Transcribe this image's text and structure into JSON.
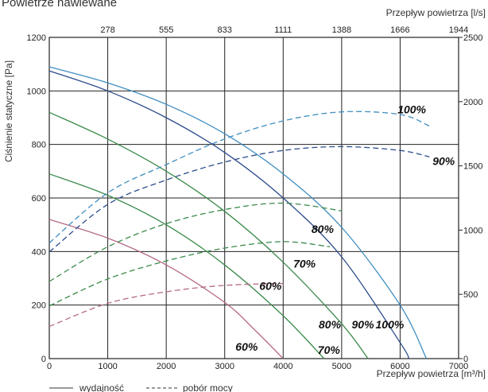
{
  "chart_data": {
    "type": "line",
    "title": "Powietrze nawiewane",
    "xlabel": "Przepływ powietrza [m³/h]",
    "x2label": "Przepływ powietrza [l/s]",
    "ylabel": "Ciśnienie statyczne [Pa]",
    "xlim": [
      0,
      7000
    ],
    "ylim": [
      0,
      1200
    ],
    "y2lim": [
      0,
      2500
    ],
    "grid": true,
    "x_ticks": [
      "0",
      "1000",
      "2000",
      "3000",
      "4000",
      "5000",
      "6000",
      "7000"
    ],
    "x2_ticks": [
      "278",
      "555",
      "833",
      "1111",
      "1388",
      "1666",
      "1944"
    ],
    "y_ticks": [
      "0",
      "200",
      "400",
      "600",
      "800",
      "1000",
      "1200"
    ],
    "y2_ticks": [
      "0",
      "500",
      "1000",
      "1500",
      "2000",
      "2500"
    ],
    "legend": {
      "position": "bottom-left",
      "solid": "wydajność",
      "dashed": "pobór mocy"
    },
    "series": [
      {
        "kind": "wydajność",
        "label": "60%",
        "color": "#b56a86",
        "x": [
          0,
          1000,
          2000,
          3000,
          3500,
          4000
        ],
        "y": [
          520,
          450,
          350,
          210,
          110,
          0
        ]
      },
      {
        "kind": "wydajność",
        "label": "70%",
        "color": "#3a8a4a",
        "x": [
          0,
          1000,
          2000,
          3000,
          4000,
          4700
        ],
        "y": [
          690,
          610,
          500,
          350,
          160,
          0
        ]
      },
      {
        "kind": "wydajność",
        "label": "80%",
        "color": "#3a8a4a",
        "x": [
          0,
          1000,
          2000,
          3000,
          4000,
          5000,
          5450
        ],
        "y": [
          920,
          820,
          700,
          550,
          360,
          130,
          0
        ]
      },
      {
        "kind": "wydajność",
        "label": "90%",
        "color": "#2c4c8c",
        "x": [
          0,
          1000,
          2000,
          3000,
          4000,
          5000,
          6000,
          6150
        ],
        "y": [
          1075,
          1000,
          900,
          770,
          600,
          380,
          60,
          0
        ]
      },
      {
        "kind": "wydajność",
        "label": "100%",
        "color": "#3f8ec0",
        "x": [
          0,
          1000,
          2000,
          3000,
          4000,
          5000,
          6000,
          6450
        ],
        "y": [
          1090,
          1030,
          950,
          840,
          690,
          490,
          200,
          0
        ]
      },
      {
        "kind": "pobór mocy",
        "label": "60%",
        "color": "#b56a86",
        "x": [
          0,
          1000,
          2000,
          3000,
          4000
        ],
        "y2": [
          250,
          430,
          520,
          570,
          585
        ]
      },
      {
        "kind": "pobór mocy",
        "label": "70%",
        "color": "#3a8a4a",
        "x": [
          0,
          1000,
          2000,
          3000,
          4000,
          4800
        ],
        "y2": [
          410,
          620,
          760,
          860,
          910,
          870
        ]
      },
      {
        "kind": "pobór mocy",
        "label": "80%",
        "color": "#3a8a4a",
        "x": [
          0,
          1000,
          2000,
          3000,
          4000,
          5000
        ],
        "y2": [
          600,
          870,
          1050,
          1160,
          1210,
          1150
        ]
      },
      {
        "kind": "pobór mocy",
        "label": "90%",
        "color": "#2c4c8c",
        "x": [
          0,
          1000,
          2000,
          3000,
          4000,
          5000,
          6000,
          6500
        ],
        "y2": [
          830,
          1200,
          1390,
          1530,
          1620,
          1650,
          1620,
          1570
        ]
      },
      {
        "kind": "pobór mocy",
        "label": "100%",
        "color": "#3f8ec0",
        "x": [
          0,
          1000,
          2000,
          3000,
          4000,
          5000,
          6000,
          6500
        ],
        "y2": [
          900,
          1290,
          1510,
          1710,
          1850,
          1920,
          1900,
          1810
        ]
      }
    ]
  }
}
